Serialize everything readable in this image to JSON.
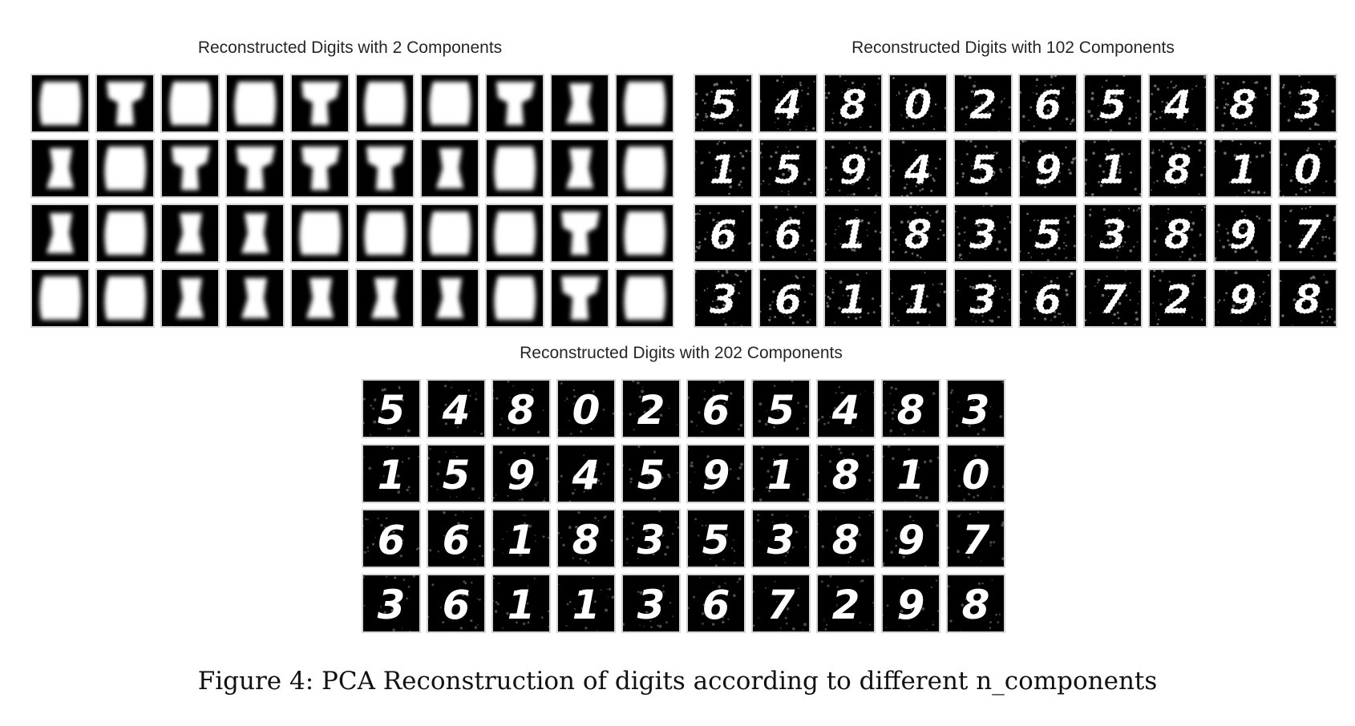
{
  "figure": {
    "caption": "Figure 4: PCA Reconstruction of digits according to different n_components"
  },
  "panels": [
    {
      "id": "panel-2",
      "title": "Reconstructed Digits with 2 Components",
      "style": "smooth",
      "digits": [
        [
          "0",
          "5",
          "0",
          "0",
          "9",
          "0",
          "0",
          "9",
          "1",
          "0"
        ],
        [
          "1",
          "0",
          "9",
          "9",
          "9",
          "9",
          "1",
          "0",
          "1",
          "0"
        ],
        [
          "1",
          "0",
          "1",
          "1",
          "0",
          "0",
          "0",
          "0",
          "9",
          "0"
        ],
        [
          "0",
          "0",
          "1",
          "1",
          "1",
          "1",
          "1",
          "0",
          "9",
          "0"
        ]
      ]
    },
    {
      "id": "panel-102",
      "title": "Reconstructed Digits with 102 Components",
      "style": "noisy",
      "digits": [
        [
          "5",
          "4",
          "8",
          "0",
          "2",
          "6",
          "5",
          "4",
          "8",
          "3"
        ],
        [
          "1",
          "5",
          "9",
          "4",
          "5",
          "9",
          "1",
          "8",
          "1",
          "0"
        ],
        [
          "6",
          "6",
          "1",
          "8",
          "3",
          "5",
          "3",
          "8",
          "9",
          "7"
        ],
        [
          "3",
          "6",
          "1",
          "1",
          "3",
          "6",
          "7",
          "2",
          "9",
          "8"
        ]
      ]
    },
    {
      "id": "panel-202",
      "title": "Reconstructed Digits with 202 Components",
      "style": "sharp",
      "digits": [
        [
          "5",
          "4",
          "8",
          "0",
          "2",
          "6",
          "5",
          "4",
          "8",
          "3"
        ],
        [
          "1",
          "5",
          "9",
          "4",
          "5",
          "9",
          "1",
          "8",
          "1",
          "0"
        ],
        [
          "6",
          "6",
          "1",
          "8",
          "3",
          "5",
          "3",
          "8",
          "9",
          "7"
        ],
        [
          "3",
          "6",
          "1",
          "1",
          "3",
          "6",
          "7",
          "2",
          "9",
          "8"
        ]
      ]
    }
  ]
}
